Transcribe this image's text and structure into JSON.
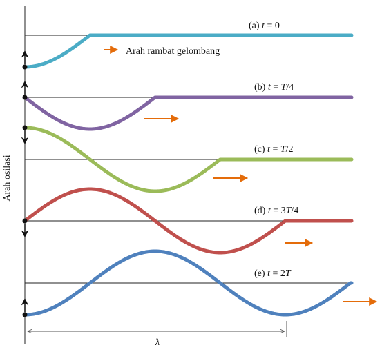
{
  "diagram": {
    "y_axis_label": "Arah osilasi",
    "propagation_label": "Arah rambat gelombang",
    "wavelength_symbol": "λ",
    "panels": [
      {
        "id": "a",
        "prefix": "(a) ",
        "var": "t",
        "eq": " = ",
        "val_plain": "0",
        "val_italic": "",
        "val_suffix": "",
        "color": "#4bacc6"
      },
      {
        "id": "b",
        "prefix": "(b) ",
        "var": "t",
        "eq": " = ",
        "val_plain": "",
        "val_italic": "T",
        "val_suffix": "/4",
        "color": "#8064a2"
      },
      {
        "id": "c",
        "prefix": "(c) ",
        "var": "t",
        "eq": " = ",
        "val_plain": "",
        "val_italic": "T",
        "val_suffix": "/2",
        "color": "#9bbb59"
      },
      {
        "id": "d",
        "prefix": "(d) ",
        "var": "t",
        "eq": " = ",
        "val_plain": "3",
        "val_italic": "T",
        "val_suffix": "/4",
        "color": "#c0504d"
      },
      {
        "id": "e",
        "prefix": "(e) ",
        "var": "t",
        "eq": " = ",
        "val_plain": "2",
        "val_italic": "T",
        "val_suffix": "",
        "color": "#4f81bd"
      }
    ],
    "arrow_color": "#e46c0a"
  }
}
